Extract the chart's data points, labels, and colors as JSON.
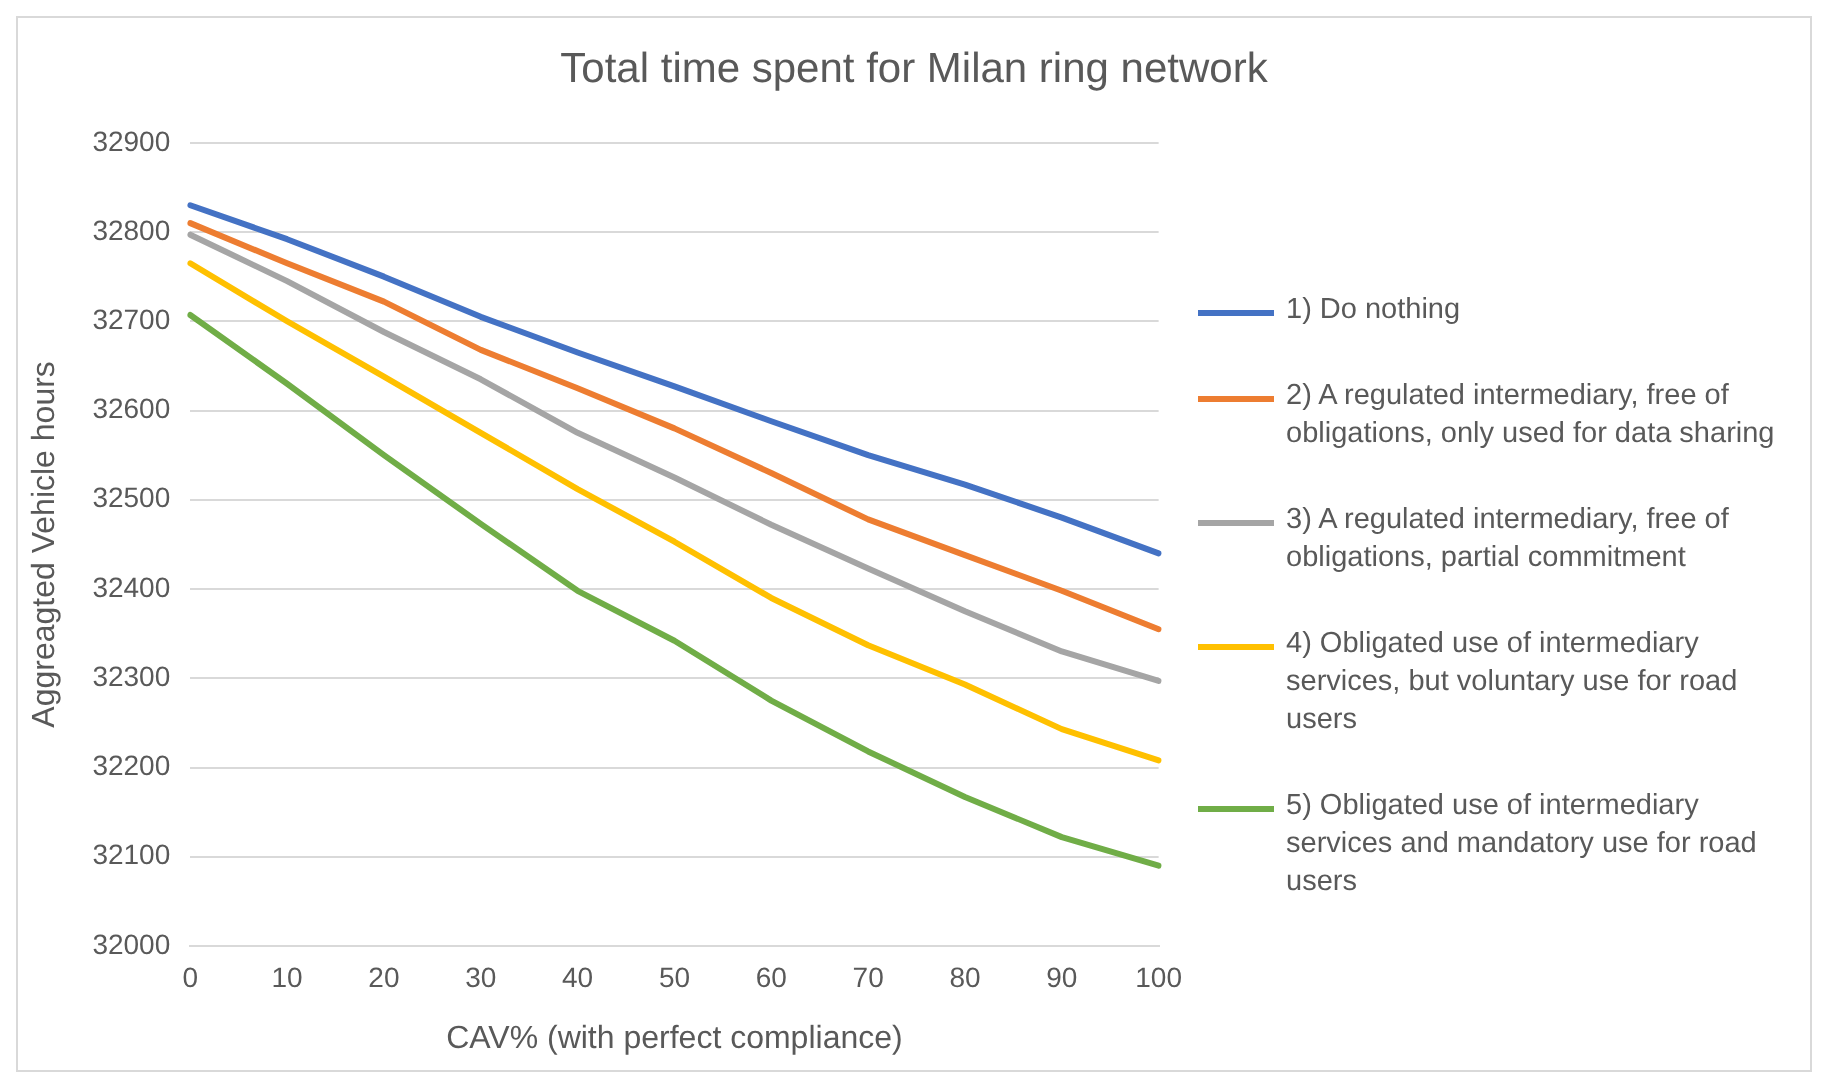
{
  "chart_data": {
    "type": "line",
    "title": "Total time spent for Milan ring network",
    "xlabel": "CAV% (with perfect compliance)",
    "ylabel": "Aggreagted Vehicle hours",
    "categories": [
      "0",
      "10",
      "20",
      "30",
      "40",
      "50",
      "60",
      "70",
      "80",
      "90",
      "100"
    ],
    "series": [
      {
        "name": "1) Do nothing",
        "color": "#4472c4",
        "values": [
          32830,
          32792,
          32750,
          32705,
          32665,
          32627,
          32588,
          32550,
          32517,
          32480,
          32440
        ]
      },
      {
        "name": "2) A regulated intermediary, free of obligations, only used for data sharing",
        "color": "#ed7d31",
        "values": [
          32810,
          32765,
          32722,
          32668,
          32625,
          32580,
          32530,
          32478,
          32438,
          32398,
          32355
        ]
      },
      {
        "name": "3) A regulated intermediary, free of obligations, partial commitment",
        "color": "#a5a5a5",
        "values": [
          32797,
          32745,
          32688,
          32635,
          32575,
          32525,
          32472,
          32423,
          32375,
          32330,
          32297
        ]
      },
      {
        "name": "4) Obligated use of intermediary services, but voluntary use for road users",
        "color": "#ffc000",
        "values": [
          32765,
          32700,
          32638,
          32575,
          32512,
          32453,
          32390,
          32337,
          32293,
          32243,
          32208
        ]
      },
      {
        "name": "5) Obligated use of intermediary services and mandatory use for road users",
        "color": "#70ad47",
        "values": [
          32707,
          32630,
          32550,
          32473,
          32398,
          32342,
          32275,
          32218,
          32167,
          32122,
          32090
        ]
      }
    ],
    "ylim": [
      32000,
      32900
    ],
    "yticks": [
      32000,
      32100,
      32200,
      32300,
      32400,
      32500,
      32600,
      32700,
      32800,
      32900
    ],
    "grid": "y",
    "legend": "right",
    "marker": "none",
    "line_style": "solid"
  }
}
